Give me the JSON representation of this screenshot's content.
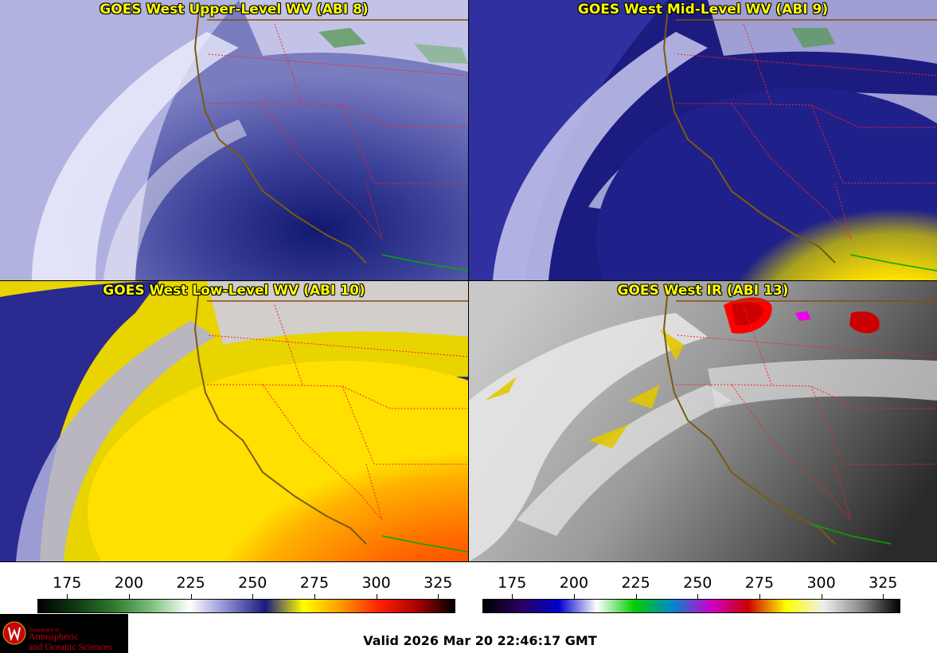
{
  "panels": [
    {
      "title": "GOES West Upper-Level WV (ABI 8)"
    },
    {
      "title": "GOES West Mid-Level WV (ABI 9)"
    },
    {
      "title": "GOES West Low-Level WV (ABI 10)"
    },
    {
      "title": "GOES West IR (ABI 13)"
    }
  ],
  "colorbars": [
    {
      "ticks": [
        "175",
        "200",
        "225",
        "250",
        "275",
        "300",
        "325"
      ],
      "range": [
        163,
        332
      ],
      "colors": [
        "#000000",
        "#0e3a10",
        "#2e7a2e",
        "#7ec07e",
        "#ffffff",
        "#8a8ad0",
        "#1a1a80",
        "#ffff00",
        "#ff9900",
        "#ff2200",
        "#aa0000",
        "#000000"
      ]
    },
    {
      "ticks": [
        "175",
        "200",
        "225",
        "250",
        "275",
        "300",
        "325"
      ],
      "range": [
        163,
        332
      ],
      "colors": [
        "#000000",
        "#2a0060",
        "#0000cc",
        "#ffffff",
        "#00cc00",
        "#0088cc",
        "#cc00cc",
        "#cc0000",
        "#ffff00",
        "#eeeeee",
        "#888888",
        "#000000"
      ]
    }
  ],
  "logo": {
    "dept": "Department of",
    "line1": "Atmospheric",
    "line2": "and Oceanic Sciences"
  },
  "valid_text": "Valid 2026 Mar 20 22:46:17 GMT"
}
